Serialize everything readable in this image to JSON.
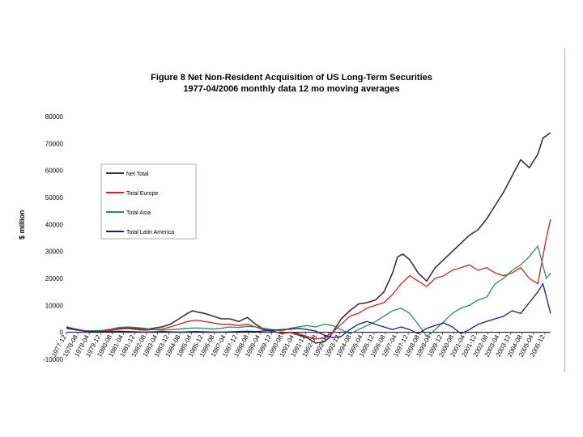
{
  "chart_data": {
    "type": "line",
    "title": "Figure 8 Net Non-Resident Acquisition of US Long-Term Securities",
    "subtitle": "1977-04/2006 monthly data 12 mo moving averages",
    "ylabel": "$ million",
    "xlabel": "",
    "ylim": [
      -10000,
      80000
    ],
    "yticks": [
      -10000,
      0,
      10000,
      20000,
      30000,
      40000,
      50000,
      60000,
      70000,
      80000
    ],
    "ytick_labels": [
      "-10000",
      "0",
      "10000",
      "20000",
      "30000",
      "40000",
      "50000",
      "60000",
      "70000",
      "80000"
    ],
    "x_range": [
      1977.917,
      2006.25
    ],
    "xtick_labels": [
      "1977-12",
      "1978-08",
      "1979-04",
      "1979-12",
      "1980-08",
      "1981-04",
      "1981-12",
      "1982-08",
      "1983-04",
      "1983-12",
      "1984-08",
      "1985-04",
      "1985-12",
      "1986-08",
      "1987-04",
      "1987-12",
      "1988-08",
      "1989-04",
      "1989-12",
      "1990-08",
      "1991-04",
      "1991-12",
      "1992-08",
      "1993-04",
      "1993-12",
      "1994-08",
      "1995-04",
      "1995-12",
      "1996-08",
      "1997-04",
      "1997-12",
      "1998-08",
      "1999-04",
      "1999-12",
      "2000-08",
      "2001-04",
      "2001-12",
      "2002-08",
      "2003-04",
      "2003-12",
      "2004-08",
      "2005-04",
      "2005-12"
    ],
    "legend_position": "top-left",
    "series": [
      {
        "name": "Net Total",
        "color": "#333333",
        "x": [
          1977.92,
          1978.5,
          1979.0,
          1979.5,
          1980.0,
          1980.5,
          1981.0,
          1981.5,
          1982.0,
          1982.5,
          1983.0,
          1983.5,
          1984.0,
          1984.5,
          1985.0,
          1985.3,
          1985.6,
          1986.0,
          1986.5,
          1987.0,
          1987.5,
          1988.0,
          1988.5,
          1989.0,
          1989.5,
          1990.0,
          1990.5,
          1991.0,
          1991.5,
          1992.0,
          1992.5,
          1993.0,
          1993.3,
          1993.6,
          1994.0,
          1994.5,
          1995.0,
          1995.5,
          1996.0,
          1996.5,
          1997.0,
          1997.3,
          1997.6,
          1998.0,
          1998.5,
          1999.0,
          1999.5,
          2000.0,
          2000.5,
          2001.0,
          2001.5,
          2002.0,
          2002.5,
          2003.0,
          2003.5,
          2004.0,
          2004.5,
          2005.0,
          2005.5,
          2005.8,
          2006.25
        ],
        "values": [
          2000,
          1000,
          500,
          300,
          600,
          800,
          1500,
          1800,
          1500,
          1000,
          1500,
          2000,
          3000,
          5000,
          7000,
          8000,
          7500,
          7000,
          6000,
          5000,
          5000,
          4000,
          5500,
          3000,
          1000,
          500,
          -500,
          0,
          -1000,
          -2000,
          -4000,
          -3500,
          -2000,
          1000,
          5000,
          8000,
          10500,
          11000,
          12000,
          15000,
          22000,
          28000,
          29000,
          27000,
          22000,
          19000,
          24000,
          27000,
          30000,
          33000,
          36000,
          38000,
          42000,
          47000,
          52000,
          58000,
          64000,
          61000,
          66000,
          72000,
          74000
        ]
      },
      {
        "name": "Total Europe",
        "color": "#cc2222",
        "x": [
          1977.92,
          1978.5,
          1979.0,
          1979.5,
          1980.0,
          1980.5,
          1981.0,
          1981.5,
          1982.0,
          1982.5,
          1983.0,
          1983.5,
          1984.0,
          1984.5,
          1985.0,
          1985.5,
          1986.0,
          1986.5,
          1987.0,
          1987.5,
          1988.0,
          1988.5,
          1989.0,
          1989.5,
          1990.0,
          1990.5,
          1991.0,
          1991.5,
          1992.0,
          1992.5,
          1993.0,
          1993.5,
          1994.0,
          1994.5,
          1995.0,
          1995.5,
          1996.0,
          1996.5,
          1997.0,
          1997.5,
          1998.0,
          1998.5,
          1999.0,
          1999.5,
          2000.0,
          2000.5,
          2001.0,
          2001.5,
          2002.0,
          2002.5,
          2003.0,
          2003.5,
          2004.0,
          2004.5,
          2005.0,
          2005.5,
          2006.0,
          2006.25
        ],
        "values": [
          1500,
          800,
          400,
          300,
          500,
          700,
          1200,
          1400,
          1000,
          800,
          1000,
          1200,
          2000,
          3000,
          4000,
          4500,
          4000,
          3500,
          3000,
          3000,
          2500,
          3000,
          2000,
          800,
          300,
          -300,
          0,
          -500,
          -1500,
          -2500,
          -2000,
          0,
          3000,
          6000,
          7000,
          9000,
          10000,
          11000,
          14000,
          18000,
          21000,
          19000,
          17000,
          20000,
          21000,
          23000,
          24000,
          25000,
          23000,
          24000,
          22000,
          21000,
          22000,
          24000,
          20000,
          18000,
          35000,
          42000
        ]
      },
      {
        "name": "Total Asia",
        "color": "#2f8a60",
        "x": [
          1977.92,
          1978.5,
          1979.0,
          1979.5,
          1980.0,
          1980.5,
          1981.0,
          1981.5,
          1982.0,
          1982.5,
          1983.0,
          1983.5,
          1984.0,
          1984.5,
          1985.0,
          1985.5,
          1986.0,
          1986.5,
          1987.0,
          1987.5,
          1988.0,
          1988.5,
          1989.0,
          1989.5,
          1990.0,
          1990.5,
          1991.0,
          1991.5,
          1992.0,
          1992.5,
          1993.0,
          1993.5,
          1994.0,
          1994.5,
          1995.0,
          1995.5,
          1996.0,
          1996.5,
          1997.0,
          1997.5,
          1998.0,
          1998.5,
          1999.0,
          1999.5,
          2000.0,
          2000.5,
          2001.0,
          2001.5,
          2002.0,
          2002.5,
          2003.0,
          2003.5,
          2004.0,
          2004.5,
          2005.0,
          2005.5,
          2006.0,
          2006.25
        ],
        "values": [
          1500,
          1000,
          500,
          600,
          700,
          1200,
          1800,
          2000,
          1800,
          1500,
          1000,
          800,
          1000,
          1200,
          1500,
          1600,
          1500,
          1200,
          1500,
          2000,
          1800,
          2200,
          2000,
          1500,
          1000,
          500,
          1500,
          2000,
          2500,
          2000,
          3000,
          2500,
          1000,
          -500,
          1000,
          2500,
          4000,
          6000,
          8000,
          9000,
          7000,
          3000,
          -1500,
          1000,
          4000,
          7000,
          9000,
          10000,
          12000,
          13000,
          18000,
          20000,
          23000,
          25000,
          28000,
          32000,
          20000,
          22000
        ]
      },
      {
        "name": "Total Latin America",
        "color": "#1a1a90",
        "x": [
          1977.92,
          1978.5,
          1979.0,
          1979.5,
          1980.0,
          1980.5,
          1981.0,
          1981.5,
          1982.0,
          1982.5,
          1983.0,
          1983.5,
          1984.0,
          1984.5,
          1985.0,
          1985.5,
          1986.0,
          1986.5,
          1987.0,
          1987.5,
          1988.0,
          1988.5,
          1989.0,
          1989.5,
          1990.0,
          1990.5,
          1991.0,
          1991.5,
          1992.0,
          1992.5,
          1993.0,
          1993.5,
          1994.0,
          1994.5,
          1995.0,
          1995.5,
          1996.0,
          1996.5,
          1997.0,
          1997.5,
          1998.0,
          1998.5,
          1999.0,
          1999.5,
          2000.0,
          2000.5,
          2001.0,
          2001.5,
          2002.0,
          2002.5,
          2003.0,
          2003.5,
          2004.0,
          2004.5,
          2005.0,
          2005.5,
          2005.8,
          2006.25
        ],
        "values": [
          1500,
          1200,
          500,
          300,
          200,
          300,
          400,
          300,
          200,
          100,
          200,
          300,
          200,
          100,
          200,
          300,
          200,
          100,
          100,
          200,
          300,
          400,
          300,
          500,
          800,
          1000,
          1200,
          1500,
          1000,
          500,
          -1000,
          -2000,
          -1500,
          1000,
          3000,
          4000,
          3000,
          2000,
          1000,
          2000,
          1000,
          -500,
          1500,
          2500,
          3500,
          2000,
          -500,
          1000,
          3000,
          4000,
          5000,
          6000,
          8000,
          7000,
          11000,
          15000,
          18000,
          7000
        ]
      }
    ]
  }
}
